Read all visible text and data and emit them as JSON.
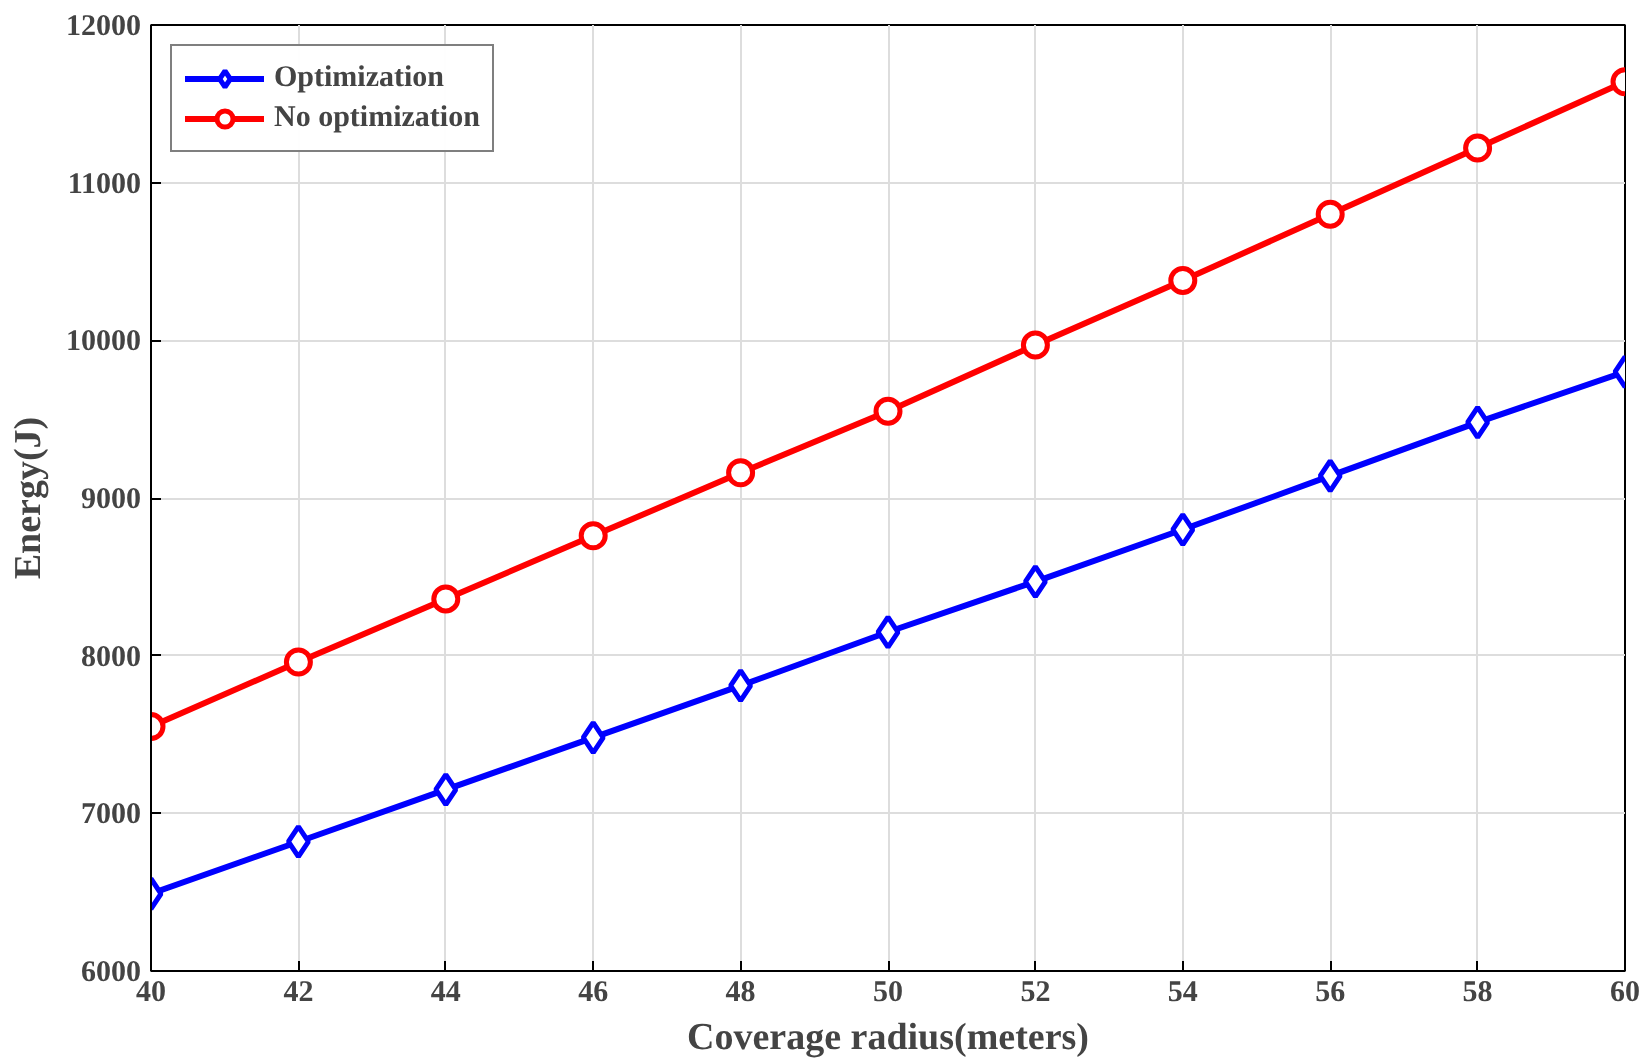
{
  "chart_data": {
    "type": "line",
    "xlabel": "Coverage radius(meters)",
    "ylabel": "Energy(J)",
    "x": [
      40,
      42,
      44,
      46,
      48,
      50,
      52,
      54,
      56,
      58,
      60
    ],
    "series": [
      {
        "name": "Optimization",
        "color": "#0000ff",
        "marker": "diamond",
        "values": [
          6490,
          6820,
          7150,
          7480,
          7810,
          8150,
          8470,
          8800,
          9140,
          9480,
          9800
        ]
      },
      {
        "name": "No optimization",
        "color": "#ff0000",
        "marker": "circle",
        "values": [
          7550,
          7960,
          8360,
          8760,
          9160,
          9550,
          9970,
          10380,
          10800,
          11220,
          11640
        ]
      }
    ],
    "xlim": [
      40,
      60
    ],
    "xticks": [
      40,
      42,
      44,
      46,
      48,
      50,
      52,
      54,
      56,
      58,
      60
    ],
    "ylim": [
      6000,
      12000
    ],
    "yticks": [
      6000,
      7000,
      8000,
      9000,
      10000,
      11000,
      12000
    ],
    "grid": true,
    "legend": "top left",
    "line_style": "solid"
  }
}
